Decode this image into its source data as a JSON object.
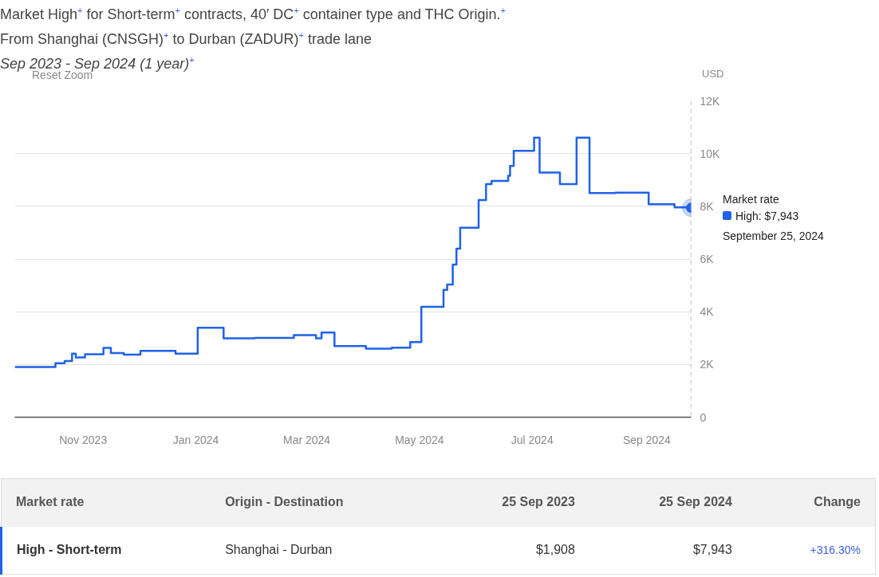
{
  "chart_data": {
    "type": "step",
    "title": "Market High$^{+}$ for Short-term$^{+}$ contracts, 40′ DC$^{+}$ container type and THC Origin.$^{+}$",
    "subtitle": "From Shanghai (CNSGH)$^{+}$ to Durban (ZADUR)$^{+}$ trade lane\nSep 2023 - Sep 2024 (1 year)$^{+}$",
    "ylabel": "USD",
    "x": [
      "2023-09-25",
      "2023-10-17",
      "2023-10-22",
      "2023-10-26",
      "2023-10-28",
      "2023-11-02",
      "2023-11-12",
      "2023-11-16",
      "2023-11-23",
      "2023-12-02",
      "2023-12-21",
      "2024-01-02",
      "2024-01-16",
      "2024-02-02",
      "2024-02-23",
      "2024-03-06",
      "2024-03-09",
      "2024-03-16",
      "2024-04-02",
      "2024-04-16",
      "2024-04-26",
      "2024-05-02",
      "2024-05-14",
      "2024-05-16",
      "2024-05-19",
      "2024-05-21",
      "2024-05-23",
      "2024-06-02",
      "2024-06-06",
      "2024-06-09",
      "2024-06-18",
      "2024-06-19",
      "2024-06-21",
      "2024-07-02",
      "2024-07-05",
      "2024-07-16",
      "2024-07-25",
      "2024-08-01",
      "2024-08-15",
      "2024-09-02",
      "2024-09-16",
      "2024-09-25"
    ],
    "series": [
      {
        "color": "#1f62e6",
        "values": [
          1908,
          2050,
          2130,
          2410,
          2270,
          2390,
          2630,
          2430,
          2370,
          2520,
          2410,
          3390,
          2990,
          3010,
          3110,
          2990,
          3210,
          2700,
          2600,
          2640,
          2850,
          4190,
          4830,
          5030,
          5790,
          6390,
          7190,
          8240,
          8840,
          8960,
          9160,
          9530,
          10100,
          10600,
          9280,
          8840,
          10600,
          8500,
          8520,
          8080,
          7960,
          7943
        ]
      }
    ],
    "xlim": [
      "2023-09-25",
      "2024-09-25"
    ],
    "xticks": [
      {
        "value": "2023-11-01",
        "label": "Nov 2023"
      },
      {
        "value": "2024-01-01",
        "label": "Jan 2024"
      },
      {
        "value": "2024-03-01",
        "label": "Mar 2024"
      },
      {
        "value": "2024-05-01",
        "label": "May 2024"
      },
      {
        "value": "2024-07-01",
        "label": "Jul 2024"
      },
      {
        "value": "2024-09-01",
        "label": "Sep 2024"
      }
    ],
    "ylim": [
      0,
      12000
    ],
    "yticks": [
      0,
      {
        "value": 2000,
        "label": "2K"
      },
      {
        "value": 4000,
        "label": "4K"
      },
      {
        "value": 6000,
        "label": "6K"
      },
      {
        "value": 8000,
        "label": "8K"
      },
      {
        "value": 10000,
        "label": "10K"
      },
      {
        "value": 12000,
        "label": "12K"
      }
    ],
    "grid": "y",
    "ref_lines": [
      {
        "axis": "x",
        "value": "2024-09-25",
        "color": "#aaaaaa",
        "line_style": "dashed"
      }
    ],
    "annotations": [
      "Reset Zoom",
      "Market rate",
      "Origin - Destination",
      "25 Sep 2023",
      "25 Sep 2024",
      "Change",
      "High - Short-term",
      "Shanghai - Durban",
      "$1,908",
      "$7,943",
      "+316.30%",
      "Market rate",
      "High: $7,943",
      "September 25, 2024"
    ]
  }
}
